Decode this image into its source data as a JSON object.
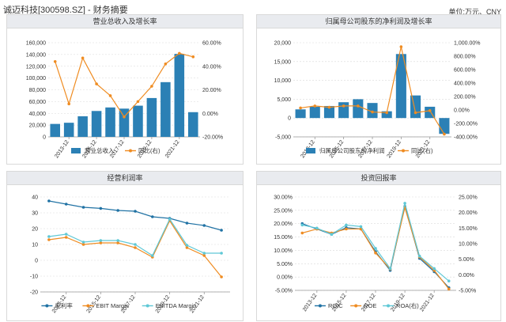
{
  "header": {
    "title": "诚迈科技[300598.SZ] - 财务摘要",
    "unit": "单位:万元、CNY"
  },
  "colors": {
    "bar": "#2b80b5",
    "orange": "#ef8c22",
    "dark_blue": "#2072a4",
    "cyan": "#5fc8d6",
    "gray_blue": "#7a98b2",
    "grid": "#d9d9d9"
  },
  "chart_data": [
    {
      "id": "revenue",
      "type": "bar+line",
      "title": "营业总收入及增长率",
      "periods": [
        "2012-12",
        "2013-12",
        "2014-12",
        "2015-12",
        "2016-12",
        "2017-12",
        "2018-12",
        "2019-12",
        "2020-12",
        "2021-12",
        "2022-12"
      ],
      "tick_labels": [
        "2013-12",
        "2015-12",
        "2017-12",
        "2019-12",
        "2021-12"
      ],
      "left_axis": {
        "ticks": [
          "160,000",
          "140,000",
          "120,000",
          "100,000",
          "80,000",
          "60,000",
          "40,000",
          "20,000",
          "0"
        ],
        "range": [
          0,
          160000
        ]
      },
      "right_axis": {
        "ticks": [
          "60.00%",
          "40.00%",
          "20.00%",
          "0.00%",
          "-20.00%"
        ],
        "range": [
          -20,
          60
        ]
      },
      "series": [
        {
          "name": "营业总收入",
          "kind": "bar",
          "axis": "left",
          "values": [
            22000,
            24000,
            35000,
            44000,
            50000,
            48000,
            53000,
            66000,
            93000,
            141000,
            42000
          ]
        },
        {
          "name": "同比(右)",
          "kind": "line",
          "axis": "right",
          "values": [
            44,
            8,
            47,
            25,
            15,
            -3,
            10,
            23,
            42,
            51,
            48
          ]
        }
      ]
    },
    {
      "id": "net-profit",
      "type": "bar+line",
      "title": "归属母公司股东的净利润及增长率",
      "periods": [
        "2012-12",
        "2013-12",
        "2014-12",
        "2015-12",
        "2016-12",
        "2017-12",
        "2018-12",
        "2019-12",
        "2020-12",
        "2021-12",
        "2022-12"
      ],
      "tick_labels": [
        "2013-12",
        "2015-12",
        "2017-12",
        "2019-12",
        "2021-12"
      ],
      "left_axis": {
        "ticks": [
          "20,000",
          "15,000",
          "10,000",
          "5,000",
          "0",
          "-5,000"
        ],
        "range": [
          -5000,
          20000
        ]
      },
      "right_axis": {
        "ticks": [
          "1,000.00%",
          "800.00%",
          "600.00%",
          "400.00%",
          "200.00%",
          "0.00%",
          "-200.00%",
          "-400.00%"
        ],
        "range": [
          -400,
          1000
        ]
      },
      "series": [
        {
          "name": "归属母公司股东的净利润",
          "kind": "bar",
          "axis": "left",
          "values": [
            2300,
            3000,
            3200,
            4200,
            5000,
            4000,
            1800,
            17000,
            6000,
            3000,
            -4200
          ]
        },
        {
          "name": "同比(右)",
          "kind": "line",
          "axis": "right",
          "values": [
            30,
            60,
            40,
            60,
            60,
            -30,
            -40,
            940,
            -40,
            -10,
            -360
          ]
        }
      ]
    },
    {
      "id": "margins",
      "type": "line",
      "title": "经营利润率",
      "periods": [
        "2012-12",
        "2013-12",
        "2014-12",
        "2015-12",
        "2016-12",
        "2017-12",
        "2018-12",
        "2019-12",
        "2020-12",
        "2021-12",
        "2022-12"
      ],
      "tick_labels": [
        "2013-12",
        "2015-12",
        "2017-12",
        "2019-12",
        "2021-12"
      ],
      "left_axis": {
        "ticks": [
          "40",
          "30",
          "20",
          "10",
          "0",
          "-10",
          "-20"
        ],
        "range": [
          -20,
          40
        ]
      },
      "series": [
        {
          "name": "毛利率",
          "kind": "line",
          "values": [
            37.5,
            35.5,
            33.5,
            32.8,
            31.5,
            31,
            27.5,
            26.5,
            23.5,
            22,
            19
          ]
        },
        {
          "name": "EBIT Margin",
          "kind": "line",
          "values": [
            13,
            14.5,
            10,
            11,
            11,
            8,
            2,
            25,
            8,
            3,
            -10.5
          ]
        },
        {
          "name": "EBITDA Margin",
          "kind": "line",
          "values": [
            15,
            16.5,
            11.5,
            12.5,
            12.5,
            10,
            3,
            26,
            9.5,
            4.5,
            4.5
          ]
        }
      ]
    },
    {
      "id": "returns",
      "type": "line",
      "title": "投资回报率",
      "periods": [
        "2012-12",
        "2013-12",
        "2014-12",
        "2015-12",
        "2016-12",
        "2017-12",
        "2018-12",
        "2019-12",
        "2020-12",
        "2021-12",
        "2022-12"
      ],
      "tick_labels": [
        "2013-12",
        "2015-12",
        "2017-12",
        "2019-12",
        "2021-12"
      ],
      "left_axis": {
        "ticks": [
          "30.00%",
          "25.00%",
          "20.00%",
          "15.00%",
          "10.00%",
          "5.00%",
          "0.00%",
          "-5.00%"
        ],
        "range": [
          -5,
          30
        ]
      },
      "right_axis": {
        "ticks": [
          "25.00%",
          "20.00%",
          "15.00%",
          "10.00%",
          "5.00%",
          "0.00%",
          "-5.00%"
        ],
        "range": [
          -5,
          25
        ]
      },
      "series": [
        {
          "name": "ROIC",
          "kind": "line",
          "axis": "left",
          "values": [
            20,
            18,
            16,
            18.5,
            18,
            9.5,
            2.5,
            26.5,
            7,
            2,
            -4
          ]
        },
        {
          "name": "ROE",
          "kind": "line",
          "axis": "left",
          "values": [
            16.5,
            18,
            16.5,
            18,
            18,
            9,
            3,
            26,
            7.5,
            2.5,
            -4.5
          ]
        },
        {
          "name": "ROA(右)",
          "kind": "line",
          "axis": "right",
          "values": [
            16,
            15,
            13,
            16,
            15.5,
            8.5,
            2,
            23,
            6,
            2,
            -2
          ]
        }
      ]
    }
  ]
}
